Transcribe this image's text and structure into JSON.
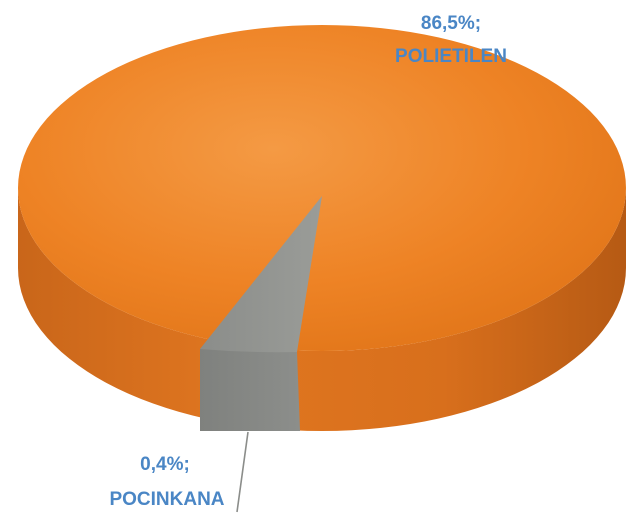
{
  "chart_data": {
    "type": "pie",
    "title": "",
    "slices": [
      {
        "value": 86.5,
        "value_label": "86,5%;",
        "category": "POLIETILEN",
        "color": "#ee8325"
      },
      {
        "value": 0.4,
        "value_label": "0,4%;",
        "category": "POCINKANA",
        "color": "#8f918e"
      }
    ],
    "legend": "none"
  }
}
